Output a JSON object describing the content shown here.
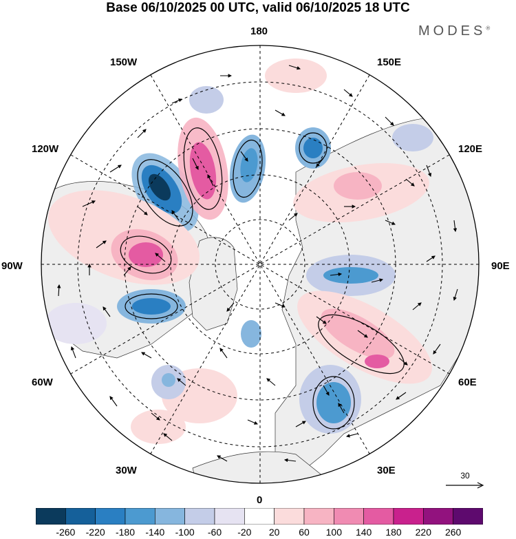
{
  "header": {
    "title": "Base 06/10/2025 00 UTC, valid 06/10/2025 18 UTC",
    "brand": "MODES",
    "brand_mark": "®"
  },
  "map": {
    "projection": "north-polar-stereographic",
    "longitude_labels": [
      "180",
      "150E",
      "120E",
      "90E",
      "60E",
      "30E",
      "0",
      "30W",
      "60W",
      "90W",
      "120W",
      "150W"
    ],
    "reference_vector": "30"
  },
  "colorbar": {
    "labels": [
      "-260",
      "-220",
      "-180",
      "-140",
      "-100",
      "-60",
      "-20",
      "20",
      "60",
      "100",
      "140",
      "180",
      "220",
      "260"
    ],
    "colors": [
      "#0b3a5c",
      "#15609a",
      "#2a7fc2",
      "#4c9ad0",
      "#86b6de",
      "#c4cde8",
      "#e6e3f2",
      "#ffffff",
      "#fbdcdc",
      "#f7b4c3",
      "#f08bb2",
      "#e45ba2",
      "#c9218d",
      "#92127e",
      "#5e0a6e"
    ]
  },
  "colors": {
    "land": "#eeeeee",
    "outline": "#000000"
  }
}
